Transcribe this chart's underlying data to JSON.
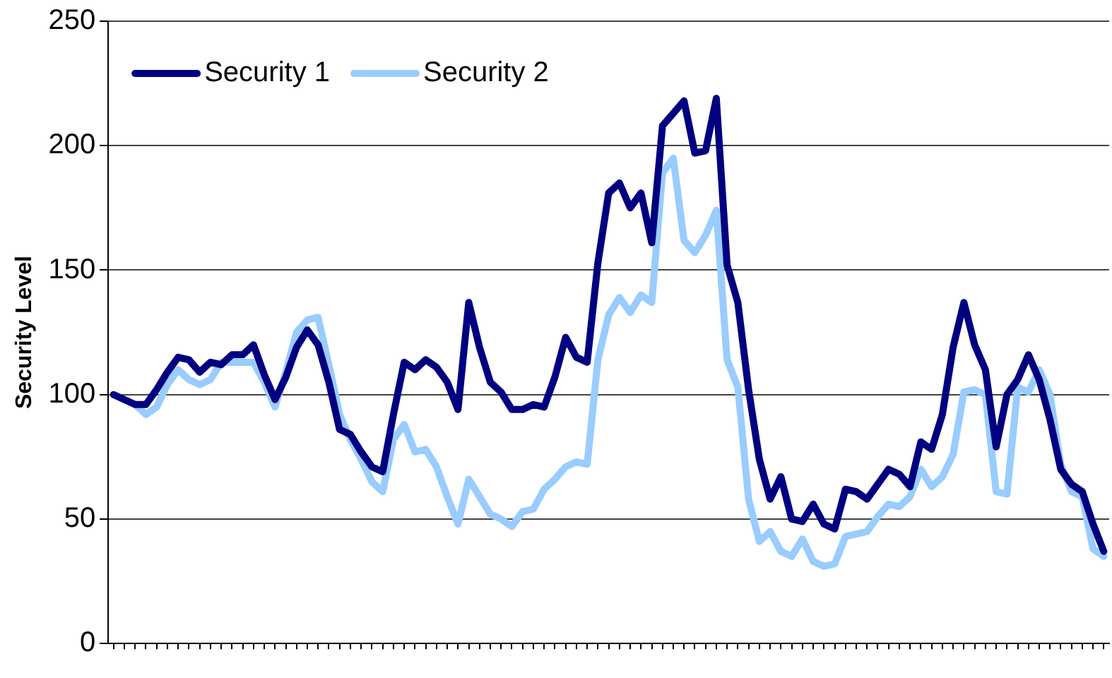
{
  "chart_data": {
    "type": "line",
    "ylabel": "Security Level",
    "categories": [
      null,
      null,
      null,
      null,
      null,
      null,
      null,
      null,
      null,
      null,
      null,
      null,
      null,
      null,
      null,
      null,
      null,
      null,
      null,
      null,
      null,
      null,
      null,
      null,
      null,
      null,
      null,
      null,
      null,
      null,
      null,
      null,
      null,
      null,
      null,
      null,
      null,
      null,
      null,
      null,
      null,
      null,
      null,
      null,
      null,
      null,
      null,
      null,
      null,
      null,
      null,
      null,
      null,
      null,
      null,
      null,
      null,
      null,
      null,
      null,
      null,
      null,
      null,
      null,
      null,
      null,
      null,
      null,
      null,
      null,
      null,
      null,
      null,
      null,
      null,
      null,
      null,
      null,
      null,
      null,
      null,
      null,
      null,
      null,
      null,
      null,
      null,
      null,
      null,
      null,
      null,
      null,
      null
    ],
    "series": [
      {
        "name": "Security 1",
        "color": "#000080",
        "values": [
          100,
          98,
          96,
          96,
          102,
          109,
          115,
          114,
          109,
          113,
          112,
          116,
          116,
          120,
          108,
          98,
          107,
          119,
          126,
          120,
          105,
          86,
          84,
          77,
          71,
          69,
          92,
          113,
          110,
          114,
          111,
          105,
          94,
          137,
          119,
          105,
          101,
          94,
          94,
          96,
          95,
          107,
          123,
          115,
          113,
          153,
          181,
          185,
          175,
          181,
          161,
          208,
          213,
          218,
          197,
          198,
          219,
          152,
          137,
          102,
          74,
          58,
          67,
          50,
          49,
          56,
          48,
          46,
          62,
          61,
          58,
          64,
          70,
          68,
          63,
          81,
          78,
          92,
          119,
          137,
          120,
          110,
          79,
          100,
          106,
          116,
          106,
          90,
          70,
          64,
          61,
          48,
          37
        ]
      },
      {
        "name": "Security 2",
        "color": "#99ccff",
        "values": [
          100,
          98,
          96,
          92,
          95,
          104,
          110,
          106,
          104,
          106,
          113,
          113,
          113,
          113,
          105,
          95,
          109,
          125,
          130,
          131,
          112,
          92,
          82,
          74,
          65,
          61,
          82,
          88,
          77,
          78,
          71,
          59,
          48,
          66,
          59,
          52,
          50,
          47,
          53,
          54,
          62,
          66,
          71,
          73,
          72,
          114,
          132,
          139,
          133,
          140,
          137,
          189,
          195,
          162,
          157,
          164,
          174,
          114,
          103,
          58,
          41,
          45,
          37,
          35,
          42,
          33,
          31,
          32,
          43,
          44,
          45,
          51,
          56,
          55,
          59,
          70,
          63,
          67,
          76,
          101,
          102,
          100,
          61,
          60,
          103,
          101,
          110,
          100,
          72,
          61,
          59,
          38,
          35
        ]
      }
    ],
    "ylim": [
      0,
      250
    ],
    "yticks": [
      0,
      50,
      100,
      150,
      200,
      250
    ],
    "grid": "y",
    "legend": "top left",
    "marker": "none",
    "line_style": "solid"
  }
}
